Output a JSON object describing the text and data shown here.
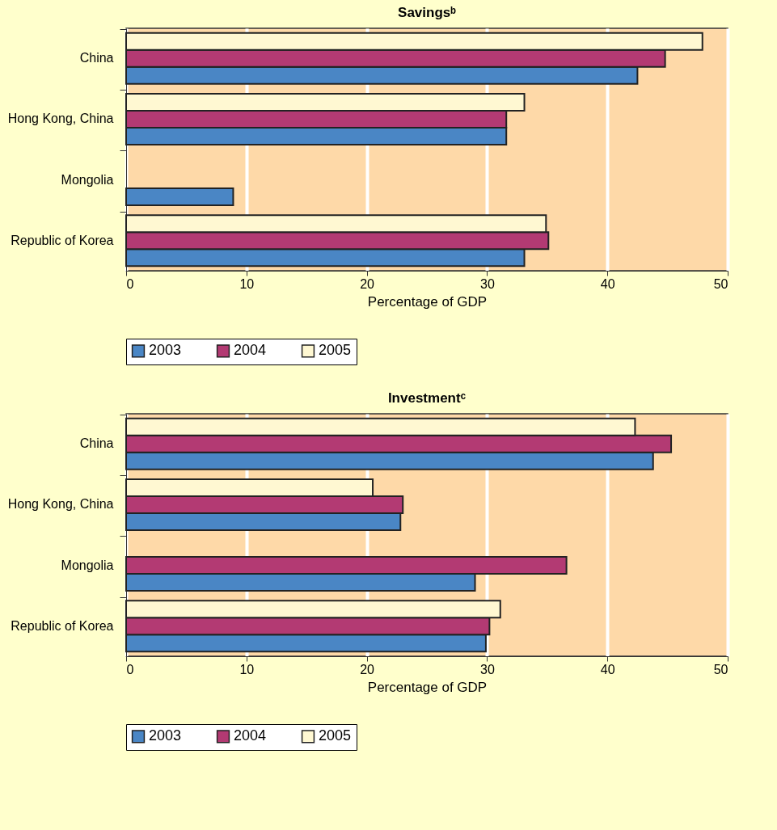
{
  "chart_data": [
    {
      "type": "bar",
      "orientation": "horizontal",
      "title": "Savingsᵇ",
      "xlabel": "Percentage of GDP",
      "categories": [
        "China",
        "Hong Kong, China",
        "Mongolia",
        "Republic of Korea"
      ],
      "series": [
        {
          "name": "2003",
          "color": "#4a86c5",
          "values": [
            42.5,
            31.6,
            8.9,
            33.1
          ]
        },
        {
          "name": "2004",
          "color": "#b33a73",
          "values": [
            44.8,
            31.6,
            null,
            35.1
          ]
        },
        {
          "name": "2005",
          "color": "#fff8d2",
          "values": [
            47.9,
            33.1,
            null,
            34.9
          ]
        }
      ],
      "xlim": [
        0,
        50
      ],
      "xticks": [
        0,
        10,
        20,
        30,
        40,
        50
      ],
      "grid": "x",
      "legend": "bottom"
    },
    {
      "type": "bar",
      "orientation": "horizontal",
      "title": "Investmentᶜ",
      "xlabel": "Percentage of GDP",
      "categories": [
        "China",
        "Hong Kong, China",
        "Mongolia",
        "Republic of Korea"
      ],
      "series": [
        {
          "name": "2003",
          "color": "#4a86c5",
          "values": [
            43.8,
            22.8,
            29.0,
            29.9
          ]
        },
        {
          "name": "2004",
          "color": "#b33a73",
          "values": [
            45.3,
            23.0,
            36.6,
            30.2
          ]
        },
        {
          "name": "2005",
          "color": "#fff8d2",
          "values": [
            42.3,
            20.5,
            null,
            31.1
          ]
        }
      ],
      "xlim": [
        0,
        50
      ],
      "xticks": [
        0,
        10,
        20,
        30,
        40,
        50
      ],
      "grid": "x",
      "legend": "bottom"
    }
  ]
}
